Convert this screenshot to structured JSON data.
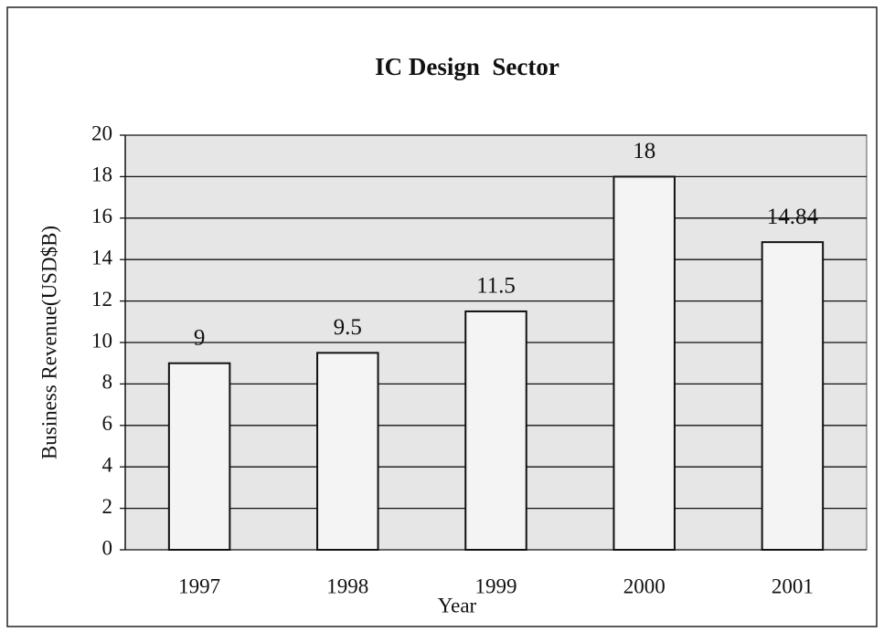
{
  "chart_data": {
    "type": "bar",
    "title": "IC Design  Sector",
    "x_label": "Year",
    "y_label": "Business Revenue(USD$B)",
    "categories": [
      "1997",
      "1998",
      "1999",
      "2000",
      "2001"
    ],
    "values": [
      9,
      9.5,
      11.5,
      18,
      14.84
    ],
    "color": "#f4f4f4",
    "ylim": [
      0,
      20
    ],
    "yticks": [
      0,
      2,
      4,
      6,
      8,
      10,
      12,
      14,
      16,
      18,
      20
    ],
    "grid": true
  }
}
